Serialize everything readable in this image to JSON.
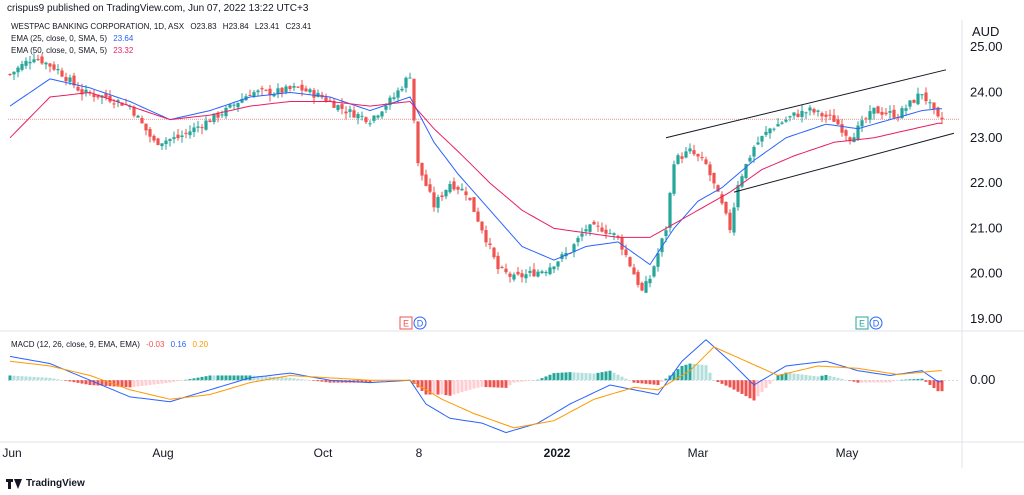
{
  "header": "crispus9 published on TradingView.com, Jun 07, 2022 13:22 UTC+3",
  "legend": {
    "symbol": "WESTPAC BANKING CORPORATION, 1D, ASX",
    "ohlc": {
      "o": "O23.83",
      "h": "H23.84",
      "l": "L23.41",
      "c": "C23.41"
    },
    "ema25": {
      "label": "EMA (25, close, 0, SMA, 5)",
      "value": "23.64",
      "color": "#2962ff"
    },
    "ema50": {
      "label": "EMA (50, close, 0, SMA, 5)",
      "value": "23.32",
      "color": "#e91e63"
    }
  },
  "macd_legend": {
    "label": "MACD (12, 26, close, 9, EMA, EMA)",
    "v1": "-0.03",
    "v2": "0.16",
    "v3": "0.20"
  },
  "brand": "TradingView",
  "colors": {
    "up": "#26a69a",
    "down": "#ef5350",
    "ema_fast": "#2962ff",
    "ema_slow": "#e91e63",
    "macd": "#2962ff",
    "signal": "#ff9800",
    "channel": "#131722"
  },
  "chart_data": {
    "type": "candlestick",
    "title": "WESTPAC BANKING CORPORATION, 1D, ASX",
    "currency_label": "AUD",
    "x_ticks": [
      "Jun",
      "Aug",
      "Oct",
      "8",
      "2022",
      "Mar",
      "May"
    ],
    "y_ticks": [
      25.0,
      24.0,
      23.0,
      22.0,
      21.0,
      20.0,
      19.0
    ],
    "ylim": [
      18.8,
      25.6
    ],
    "last_price": 23.41,
    "events": [
      {
        "date_index": 100,
        "labels": [
          "E",
          "D"
        ]
      },
      {
        "date_index": 214,
        "labels": [
          "E",
          "D"
        ]
      }
    ],
    "close_anchors": [
      [
        0,
        24.4
      ],
      [
        6,
        24.8
      ],
      [
        12,
        24.5
      ],
      [
        18,
        24.0
      ],
      [
        24,
        23.9
      ],
      [
        30,
        23.7
      ],
      [
        36,
        22.9
      ],
      [
        42,
        23.0
      ],
      [
        48,
        23.3
      ],
      [
        54,
        23.6
      ],
      [
        60,
        24.0
      ],
      [
        66,
        24.0
      ],
      [
        72,
        24.1
      ],
      [
        78,
        23.9
      ],
      [
        84,
        23.6
      ],
      [
        90,
        23.4
      ],
      [
        96,
        23.9
      ],
      [
        100,
        24.4
      ],
      [
        102,
        22.4
      ],
      [
        106,
        21.5
      ],
      [
        110,
        22.0
      ],
      [
        114,
        21.8
      ],
      [
        118,
        21.0
      ],
      [
        122,
        20.1
      ],
      [
        126,
        19.9
      ],
      [
        130,
        20.0
      ],
      [
        134,
        20.1
      ],
      [
        140,
        20.5
      ],
      [
        144,
        21.0
      ],
      [
        148,
        21.0
      ],
      [
        152,
        20.8
      ],
      [
        156,
        20.0
      ],
      [
        158,
        19.6
      ],
      [
        160,
        19.9
      ],
      [
        164,
        21.0
      ],
      [
        166,
        22.5
      ],
      [
        170,
        22.7
      ],
      [
        174,
        22.4
      ],
      [
        178,
        21.5
      ],
      [
        180,
        21.0
      ],
      [
        182,
        22.0
      ],
      [
        186,
        22.8
      ],
      [
        190,
        23.2
      ],
      [
        196,
        23.5
      ],
      [
        200,
        23.6
      ],
      [
        206,
        23.4
      ],
      [
        210,
        23.0
      ],
      [
        216,
        23.6
      ],
      [
        222,
        23.5
      ],
      [
        228,
        24.0
      ],
      [
        232,
        23.4
      ]
    ],
    "ema25_anchors": [
      [
        0,
        23.7
      ],
      [
        10,
        24.3
      ],
      [
        20,
        24.1
      ],
      [
        30,
        23.8
      ],
      [
        40,
        23.4
      ],
      [
        50,
        23.6
      ],
      [
        60,
        23.9
      ],
      [
        70,
        24.0
      ],
      [
        80,
        23.9
      ],
      [
        90,
        23.6
      ],
      [
        100,
        23.9
      ],
      [
        106,
        22.9
      ],
      [
        112,
        22.2
      ],
      [
        120,
        21.4
      ],
      [
        128,
        20.6
      ],
      [
        136,
        20.3
      ],
      [
        144,
        20.6
      ],
      [
        152,
        20.7
      ],
      [
        160,
        20.2
      ],
      [
        166,
        21.0
      ],
      [
        172,
        21.6
      ],
      [
        178,
        21.9
      ],
      [
        186,
        22.5
      ],
      [
        194,
        23.0
      ],
      [
        204,
        23.3
      ],
      [
        212,
        23.2
      ],
      [
        220,
        23.4
      ],
      [
        228,
        23.6
      ],
      [
        232,
        23.64
      ]
    ],
    "ema50_anchors": [
      [
        0,
        23.0
      ],
      [
        10,
        23.9
      ],
      [
        20,
        24.0
      ],
      [
        30,
        23.7
      ],
      [
        40,
        23.4
      ],
      [
        50,
        23.5
      ],
      [
        60,
        23.7
      ],
      [
        70,
        23.8
      ],
      [
        80,
        23.8
      ],
      [
        90,
        23.7
      ],
      [
        100,
        23.8
      ],
      [
        106,
        23.2
      ],
      [
        112,
        22.7
      ],
      [
        120,
        22.0
      ],
      [
        128,
        21.4
      ],
      [
        136,
        21.0
      ],
      [
        144,
        20.9
      ],
      [
        152,
        20.8
      ],
      [
        160,
        20.8
      ],
      [
        166,
        21.1
      ],
      [
        172,
        21.4
      ],
      [
        180,
        21.8
      ],
      [
        188,
        22.3
      ],
      [
        196,
        22.6
      ],
      [
        206,
        22.9
      ],
      [
        216,
        23.0
      ],
      [
        226,
        23.2
      ],
      [
        232,
        23.32
      ]
    ],
    "channel_upper": [
      [
        164,
        23.0
      ],
      [
        234,
        24.5
      ]
    ],
    "channel_lower": [
      [
        181,
        21.8
      ],
      [
        236,
        23.1
      ]
    ],
    "macd": {
      "ylim": [
        -1.15,
        0.95
      ],
      "y_ticks": [
        0.0
      ],
      "macd_anchors": [
        [
          0,
          0.5
        ],
        [
          10,
          0.35
        ],
        [
          20,
          0.0
        ],
        [
          30,
          -0.35
        ],
        [
          40,
          -0.45
        ],
        [
          50,
          -0.2
        ],
        [
          60,
          0.05
        ],
        [
          70,
          0.15
        ],
        [
          80,
          0.0
        ],
        [
          90,
          -0.05
        ],
        [
          100,
          0.0
        ],
        [
          104,
          -0.5
        ],
        [
          110,
          -0.8
        ],
        [
          118,
          -0.9
        ],
        [
          124,
          -1.1
        ],
        [
          132,
          -0.9
        ],
        [
          140,
          -0.5
        ],
        [
          150,
          -0.1
        ],
        [
          156,
          -0.2
        ],
        [
          162,
          -0.3
        ],
        [
          168,
          0.4
        ],
        [
          174,
          0.85
        ],
        [
          180,
          0.4
        ],
        [
          186,
          -0.1
        ],
        [
          194,
          0.3
        ],
        [
          204,
          0.4
        ],
        [
          212,
          0.2
        ],
        [
          220,
          0.1
        ],
        [
          228,
          0.2
        ],
        [
          232,
          -0.03
        ]
      ],
      "signal_anchors": [
        [
          0,
          0.4
        ],
        [
          10,
          0.3
        ],
        [
          20,
          0.1
        ],
        [
          30,
          -0.2
        ],
        [
          40,
          -0.4
        ],
        [
          50,
          -0.3
        ],
        [
          60,
          -0.05
        ],
        [
          70,
          0.1
        ],
        [
          80,
          0.05
        ],
        [
          90,
          0.0
        ],
        [
          100,
          0.0
        ],
        [
          108,
          -0.4
        ],
        [
          116,
          -0.7
        ],
        [
          126,
          -1.0
        ],
        [
          136,
          -0.85
        ],
        [
          146,
          -0.4
        ],
        [
          156,
          -0.15
        ],
        [
          162,
          -0.2
        ],
        [
          170,
          0.2
        ],
        [
          176,
          0.7
        ],
        [
          184,
          0.4
        ],
        [
          192,
          0.1
        ],
        [
          202,
          0.3
        ],
        [
          212,
          0.25
        ],
        [
          222,
          0.12
        ],
        [
          232,
          0.2
        ]
      ]
    }
  }
}
